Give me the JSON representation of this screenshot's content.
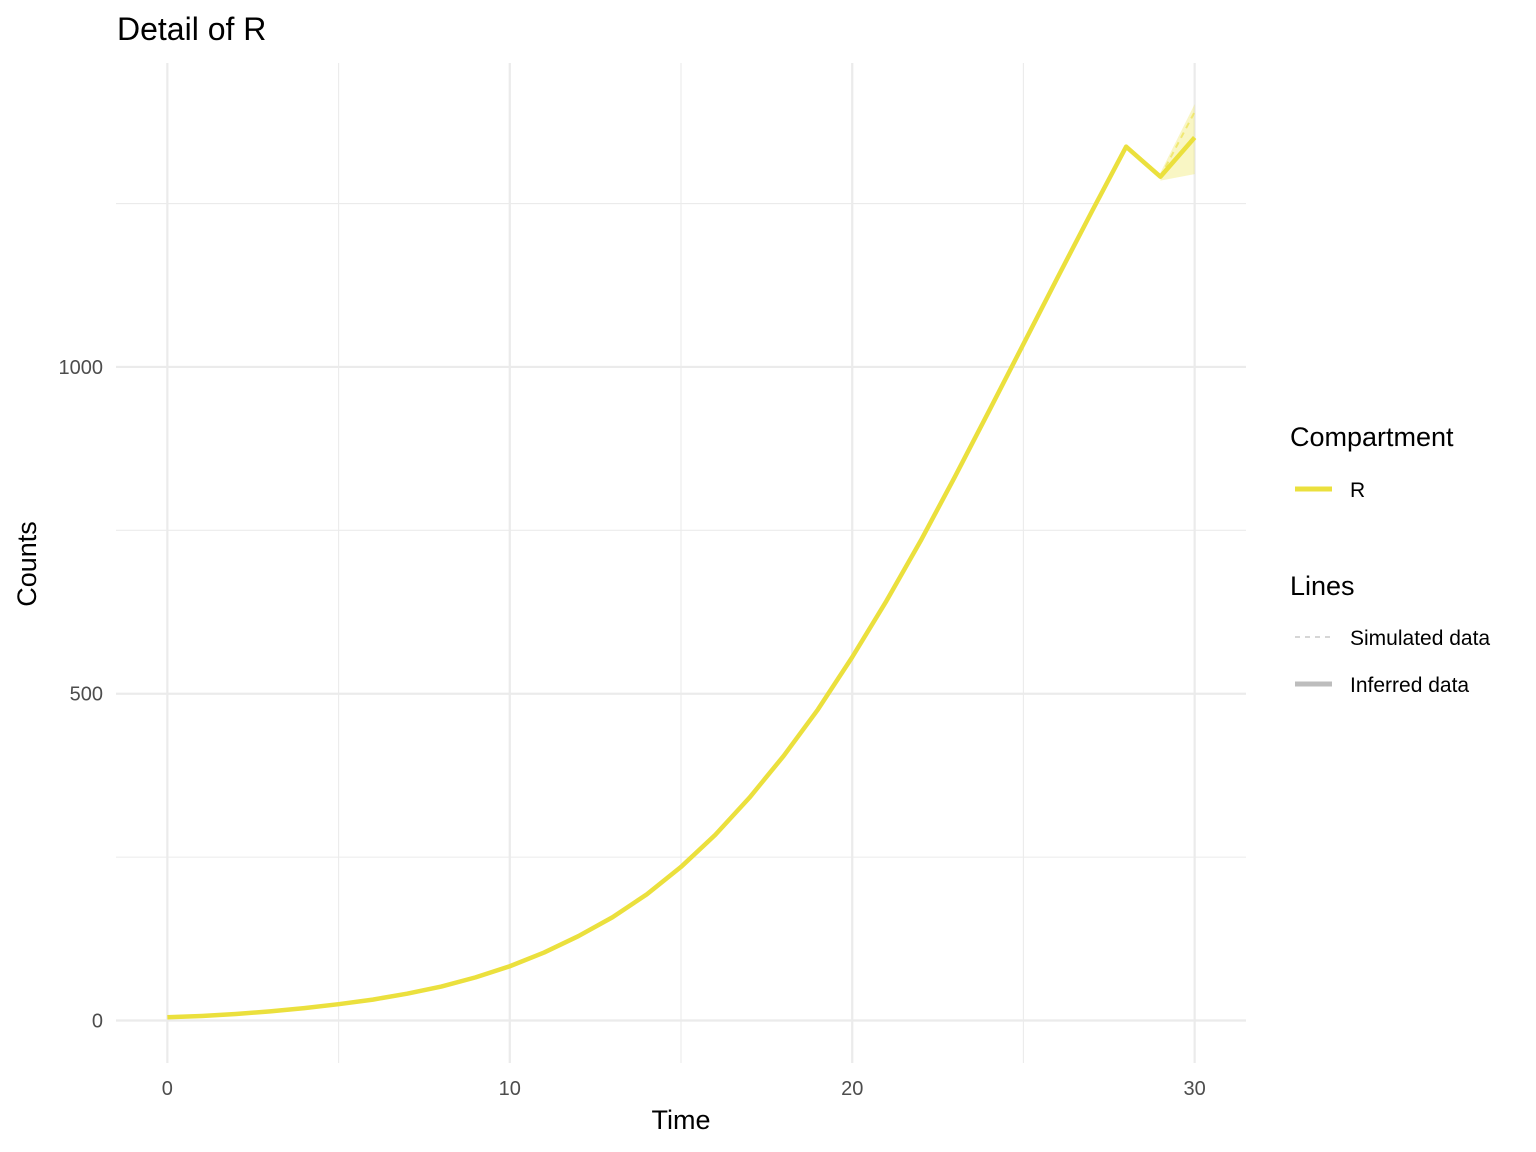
{
  "chart_data": {
    "type": "line",
    "title": "Detail of R",
    "xlabel": "Time",
    "ylabel": "Counts",
    "xlim": [
      -1.5,
      31.5
    ],
    "ylim": [
      -65,
      1465
    ],
    "x_ticks": [
      0,
      10,
      20,
      30
    ],
    "x_tick_labels": [
      "0",
      "10",
      "20",
      "30"
    ],
    "y_ticks": [
      0,
      500,
      1000
    ],
    "y_tick_labels": [
      "0",
      "500",
      "1000"
    ],
    "x_minor": [
      5,
      15,
      25
    ],
    "y_minor": [
      250,
      750,
      1250
    ],
    "grid": true,
    "legend_position": "right",
    "legend": {
      "compartment_title": "Compartment",
      "compartment_items": [
        {
          "label": "R",
          "color": "#ebe03d"
        }
      ],
      "lines_title": "Lines",
      "lines_items": [
        {
          "label": "Simulated data",
          "style": "dashed"
        },
        {
          "label": "Inferred data",
          "style": "solid"
        }
      ]
    },
    "series": [
      {
        "name": "R",
        "kind": "Inferred data",
        "color": "#ebe03d",
        "x": [
          0,
          1,
          2,
          3,
          4,
          5,
          6,
          7,
          8,
          9,
          10,
          11,
          12,
          13,
          14,
          15,
          16,
          17,
          18,
          19,
          20,
          21,
          22,
          23,
          24,
          25,
          26,
          27,
          28,
          29,
          30
        ],
        "y": [
          5,
          7,
          10,
          14,
          19,
          25,
          32,
          41,
          52,
          66,
          83,
          104,
          129,
          158,
          193,
          235,
          284,
          341,
          405,
          476,
          556,
          642,
          734,
          832,
          933,
          1035,
          1137,
          1238,
          1337,
          1291,
          1351
        ]
      },
      {
        "name": "R",
        "kind": "Simulated data",
        "color": "#ebe03d",
        "x": [
          29,
          30
        ],
        "y": [
          1291,
          1390
        ]
      }
    ],
    "ribbon": {
      "color": "#ebe03d",
      "x": [
        29,
        30
      ],
      "lower": [
        1285,
        1295
      ],
      "upper": [
        1297,
        1402
      ]
    }
  }
}
